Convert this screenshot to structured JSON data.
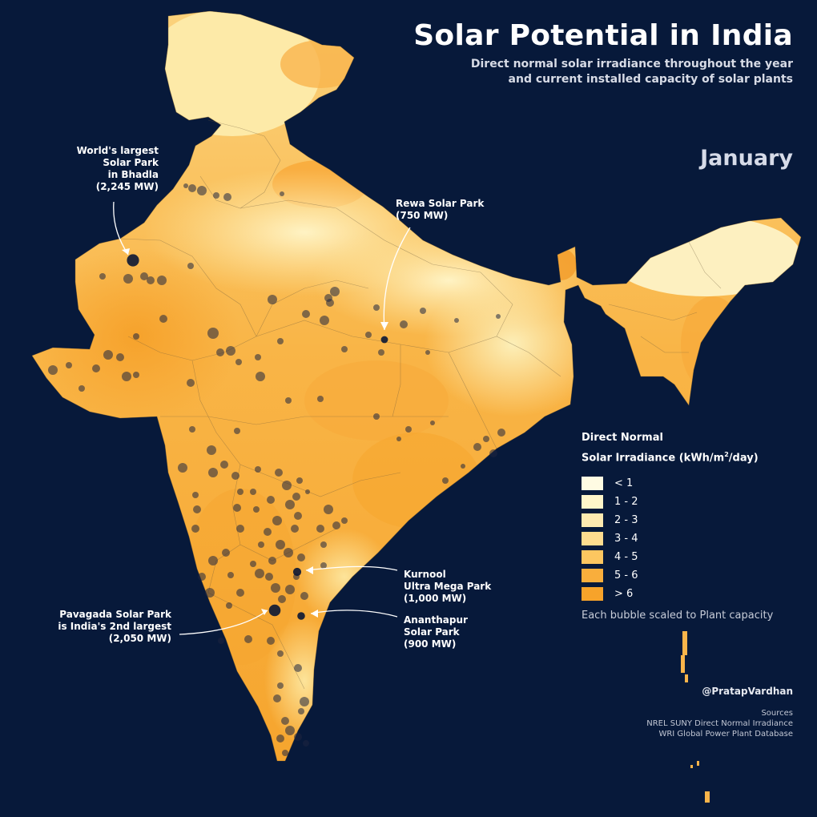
{
  "header": {
    "title": "Solar Potential in India",
    "subtitle_line1": "Direct normal solar irradiance throughout the year",
    "subtitle_line2": "and current installed capacity of solar plants",
    "month": "January"
  },
  "annotations": {
    "bhadla": {
      "line1": "World's largest",
      "line2": "Solar Park",
      "line3": "in Bhadla",
      "line4": "(2,245 MW)"
    },
    "rewa": {
      "line1": "Rewa Solar Park",
      "line2": "(750 MW)"
    },
    "kurnool": {
      "line1": "Kurnool",
      "line2": "Ultra Mega Park",
      "line3": "(1,000 MW)"
    },
    "pavagada": {
      "line1": "Pavagada Solar Park",
      "line2": "is India's 2nd largest",
      "line3": "(2,050 MW)"
    },
    "ananthapur": {
      "line1": "Ananthapur",
      "line2": "Solar Park",
      "line3": "(900 MW)"
    }
  },
  "legend": {
    "title_line1": "Direct Normal",
    "title_line2": "Solar Irradiance (kWh/m",
    "title_sup": "2",
    "title_tail": "/day)",
    "items": [
      {
        "label": "< 1",
        "color": "#fffbe3"
      },
      {
        "label": "1 - 2",
        "color": "#fff5c9"
      },
      {
        "label": "2 - 3",
        "color": "#feeab0"
      },
      {
        "label": "3 - 4",
        "color": "#fedc8f"
      },
      {
        "label": "4 - 5",
        "color": "#fcc660"
      },
      {
        "label": "5 - 6",
        "color": "#f9ae3c"
      },
      {
        "label": "> 6",
        "color": "#f7a32a"
      }
    ],
    "note": "Each bubble scaled to Plant capacity"
  },
  "credit": "@PratapVardhan",
  "sources": {
    "heading": "Sources",
    "line1": "NREL SUNY Direct Normal Irradiance",
    "line2": "WRI Global Power Plant Database"
  },
  "colors": {
    "background": "#07193a",
    "bubble": "#1d2540",
    "highlight_bubble": "#0b1735"
  },
  "highlighted_plants": [
    {
      "name": "Bhadla",
      "capacity_mw": 2245
    },
    {
      "name": "Pavagada",
      "capacity_mw": 2050
    },
    {
      "name": "Kurnool",
      "capacity_mw": 1000
    },
    {
      "name": "Ananthapur",
      "capacity_mw": 900
    },
    {
      "name": "Rewa",
      "capacity_mw": 750
    }
  ]
}
